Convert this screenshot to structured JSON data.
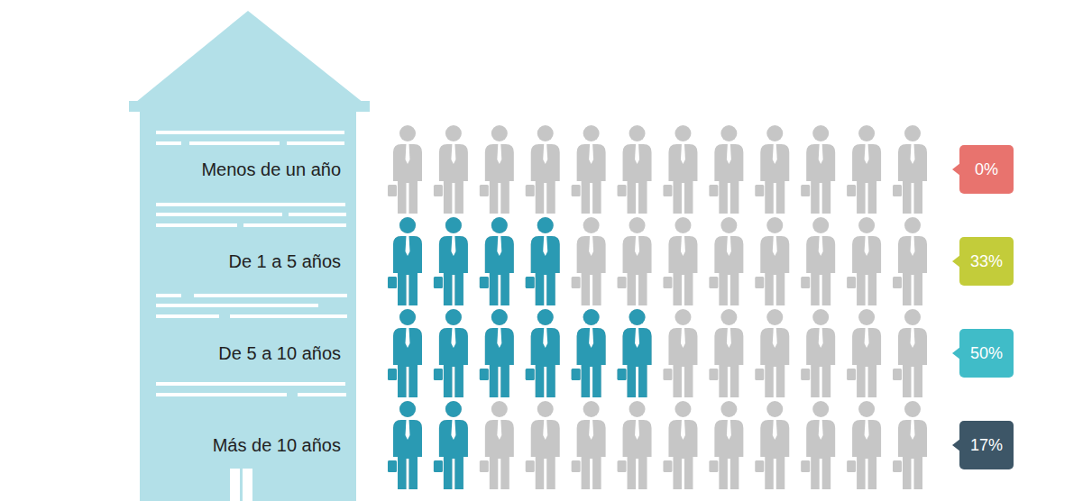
{
  "chart_data": {
    "type": "pictogram",
    "categories": [
      "Menos de un año",
      "De 1 a 5 años",
      "De 5 a 10 años",
      "Más de 10 años"
    ],
    "values": [
      0,
      33,
      50,
      17
    ],
    "value_labels": [
      "0%",
      "33%",
      "50%",
      "17%"
    ],
    "color": "#2a9ab3",
    "colors": [
      "#e8736e",
      "#c3cc3a",
      "#40bcc8",
      "#3d5667"
    ],
    "xlim": [
      0,
      100
    ],
    "tick_labels": false,
    "data_labels": true
  }
}
